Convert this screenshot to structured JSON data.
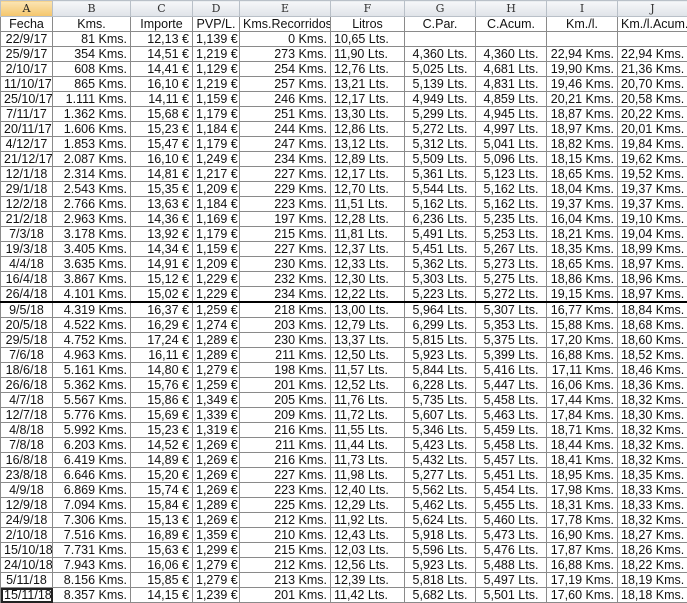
{
  "sheet": {
    "column_letters": [
      "A",
      "B",
      "C",
      "D",
      "E",
      "F",
      "G",
      "H",
      "I",
      "J"
    ],
    "active_column": "A",
    "headers": [
      "Fecha",
      "Kms.",
      "Importe",
      "PVP/L.",
      "Kms.Recorridos",
      "Litros",
      "C.Par.",
      "C.Acum.",
      "Km./l.",
      "Km./l.Acum."
    ],
    "rows": [
      [
        "22/9/17",
        "81 Kms.",
        "12,13 €",
        "1,139 €",
        "0 Kms.",
        "10,65 Lts.",
        "",
        "",
        "",
        ""
      ],
      [
        "25/9/17",
        "354 Kms.",
        "14,51 €",
        "1,219 €",
        "273 Kms.",
        "11,90 Lts.",
        "4,360 Lts.",
        "4,360 Lts.",
        "22,94 Kms.",
        "22,94 Kms."
      ],
      [
        "2/10/17",
        "608 Kms.",
        "14,41 €",
        "1,129 €",
        "254 Kms.",
        "12,76 Lts.",
        "5,025 Lts.",
        "4,681 Lts.",
        "19,90 Kms.",
        "21,36 Kms."
      ],
      [
        "11/10/17",
        "865 Kms.",
        "16,10 €",
        "1,219 €",
        "257 Kms.",
        "13,21 Lts.",
        "5,139 Lts.",
        "4,831 Lts.",
        "19,46 Kms.",
        "20,70 Kms."
      ],
      [
        "25/10/17",
        "1.111 Kms.",
        "14,11 €",
        "1,159 €",
        "246 Kms.",
        "12,17 Lts.",
        "4,949 Lts.",
        "4,859 Lts.",
        "20,21 Kms.",
        "20,58 Kms."
      ],
      [
        "7/11/17",
        "1.362 Kms.",
        "15,68 €",
        "1,179 €",
        "251 Kms.",
        "13,30 Lts.",
        "5,299 Lts.",
        "4,945 Lts.",
        "18,87 Kms.",
        "20,22 Kms."
      ],
      [
        "20/11/17",
        "1.606 Kms.",
        "15,23 €",
        "1,184 €",
        "244 Kms.",
        "12,86 Lts.",
        "5,272 Lts.",
        "4,997 Lts.",
        "18,97 Kms.",
        "20,01 Kms."
      ],
      [
        "4/12/17",
        "1.853 Kms.",
        "15,47 €",
        "1,179 €",
        "247 Kms.",
        "13,12 Lts.",
        "5,312 Lts.",
        "5,041 Lts.",
        "18,82 Kms.",
        "19,84 Kms."
      ],
      [
        "21/12/17",
        "2.087 Kms.",
        "16,10 €",
        "1,249 €",
        "234 Kms.",
        "12,89 Lts.",
        "5,509 Lts.",
        "5,096 Lts.",
        "18,15 Kms.",
        "19,62 Kms."
      ],
      [
        "12/1/18",
        "2.314 Kms.",
        "14,81 €",
        "1,217 €",
        "227 Kms.",
        "12,17 Lts.",
        "5,361 Lts.",
        "5,123 Lts.",
        "18,65 Kms.",
        "19,52 Kms."
      ],
      [
        "29/1/18",
        "2.543 Kms.",
        "15,35 €",
        "1,209 €",
        "229 Kms.",
        "12,70 Lts.",
        "5,544 Lts.",
        "5,162 Lts.",
        "18,04 Kms.",
        "19,37 Kms."
      ],
      [
        "12/2/18",
        "2.766 Kms.",
        "13,63 €",
        "1,184 €",
        "223 Kms.",
        "11,51 Lts.",
        "5,162 Lts.",
        "5,162 Lts.",
        "19,37 Kms.",
        "19,37 Kms."
      ],
      [
        "21/2/18",
        "2.963 Kms.",
        "14,36 €",
        "1,169 €",
        "197 Kms.",
        "12,28 Lts.",
        "6,236 Lts.",
        "5,235 Lts.",
        "16,04 Kms.",
        "19,10 Kms."
      ],
      [
        "7/3/18",
        "3.178 Kms.",
        "13,92 €",
        "1,179 €",
        "215 Kms.",
        "11,81 Lts.",
        "5,491 Lts.",
        "5,253 Lts.",
        "18,21 Kms.",
        "19,04 Kms."
      ],
      [
        "19/3/18",
        "3.405 Kms.",
        "14,34 €",
        "1,159 €",
        "227 Kms.",
        "12,37 Lts.",
        "5,451 Lts.",
        "5,267 Lts.",
        "18,35 Kms.",
        "18,99 Kms."
      ],
      [
        "4/4/18",
        "3.635 Kms.",
        "14,91 €",
        "1,209 €",
        "230 Kms.",
        "12,33 Lts.",
        "5,362 Lts.",
        "5,273 Lts.",
        "18,65 Kms.",
        "18,97 Kms."
      ],
      [
        "16/4/18",
        "3.867 Kms.",
        "15,12 €",
        "1,229 €",
        "232 Kms.",
        "12,30 Lts.",
        "5,303 Lts.",
        "5,275 Lts.",
        "18,86 Kms.",
        "18,96 Kms."
      ],
      [
        "26/4/18",
        "4.101 Kms.",
        "15,02 €",
        "1,229 €",
        "234 Kms.",
        "12,22 Lts.",
        "5,223 Lts.",
        "5,272 Lts.",
        "19,15 Kms.",
        "18,97 Kms."
      ],
      [
        "9/5/18",
        "4.319 Kms.",
        "16,37 €",
        "1,259 €",
        "218 Kms.",
        "13,00 Lts.",
        "5,964 Lts.",
        "5,307 Lts.",
        "16,77 Kms.",
        "18,84 Kms."
      ],
      [
        "20/5/18",
        "4.522 Kms.",
        "16,29 €",
        "1,274 €",
        "203 Kms.",
        "12,79 Lts.",
        "6,299 Lts.",
        "5,353 Lts.",
        "15,88 Kms.",
        "18,68 Kms."
      ],
      [
        "29/5/18",
        "4.752 Kms.",
        "17,24 €",
        "1,289 €",
        "230 Kms.",
        "13,37 Lts.",
        "5,815 Lts.",
        "5,375 Lts.",
        "17,20 Kms.",
        "18,60 Kms."
      ],
      [
        "7/6/18",
        "4.963 Kms.",
        "16,11 €",
        "1,289 €",
        "211 Kms.",
        "12,50 Lts.",
        "5,923 Lts.",
        "5,399 Lts.",
        "16,88 Kms.",
        "18,52 Kms."
      ],
      [
        "18/6/18",
        "5.161 Kms.",
        "14,80 €",
        "1,279 €",
        "198 Kms.",
        "11,57 Lts.",
        "5,844 Lts.",
        "5,416 Lts.",
        "17,11 Kms.",
        "18,46 Kms."
      ],
      [
        "26/6/18",
        "5.362 Kms.",
        "15,76 €",
        "1,259 €",
        "201 Kms.",
        "12,52 Lts.",
        "6,228 Lts.",
        "5,447 Lts.",
        "16,06 Kms.",
        "18,36 Kms."
      ],
      [
        "4/7/18",
        "5.567 Kms.",
        "15,86 €",
        "1,349 €",
        "205 Kms.",
        "11,76 Lts.",
        "5,735 Lts.",
        "5,458 Lts.",
        "17,44 Kms.",
        "18,32 Kms."
      ],
      [
        "12/7/18",
        "5.776 Kms.",
        "15,69 €",
        "1,339 €",
        "209 Kms.",
        "11,72 Lts.",
        "5,607 Lts.",
        "5,463 Lts.",
        "17,84 Kms.",
        "18,30 Kms."
      ],
      [
        "4/8/18",
        "5.992 Kms.",
        "15,23 €",
        "1,319 €",
        "216 Kms.",
        "11,55 Lts.",
        "5,346 Lts.",
        "5,459 Lts.",
        "18,71 Kms.",
        "18,32 Kms."
      ],
      [
        "7/8/18",
        "6.203 Kms.",
        "14,52 €",
        "1,269 €",
        "211 Kms.",
        "11,44 Lts.",
        "5,423 Lts.",
        "5,458 Lts.",
        "18,44 Kms.",
        "18,32 Kms."
      ],
      [
        "16/8/18",
        "6.419 Kms.",
        "14,89 €",
        "1,269 €",
        "216 Kms.",
        "11,73 Lts.",
        "5,432 Lts.",
        "5,457 Lts.",
        "18,41 Kms.",
        "18,32 Kms."
      ],
      [
        "23/8/18",
        "6.646 Kms.",
        "15,20 €",
        "1,269 €",
        "227 Kms.",
        "11,98 Lts.",
        "5,277 Lts.",
        "5,451 Lts.",
        "18,95 Kms.",
        "18,35 Kms."
      ],
      [
        "4/9/18",
        "6.869 Kms.",
        "15,74 €",
        "1,269 €",
        "223 Kms.",
        "12,40 Lts.",
        "5,562 Lts.",
        "5,454 Lts.",
        "17,98 Kms.",
        "18,33 Kms."
      ],
      [
        "12/9/18",
        "7.094 Kms.",
        "15,84 €",
        "1,289 €",
        "225 Kms.",
        "12,29 Lts.",
        "5,462 Lts.",
        "5,455 Lts.",
        "18,31 Kms.",
        "18,33 Kms."
      ],
      [
        "24/9/18",
        "7.306 Kms.",
        "15,13 €",
        "1,269 €",
        "212 Kms.",
        "11,92 Lts.",
        "5,624 Lts.",
        "5,460 Lts.",
        "17,78 Kms.",
        "18,32 Kms."
      ],
      [
        "2/10/18",
        "7.516 Kms.",
        "16,89 €",
        "1,359 €",
        "210 Kms.",
        "12,43 Lts.",
        "5,918 Lts.",
        "5,473 Lts.",
        "16,90 Kms.",
        "18,27 Kms."
      ],
      [
        "15/10/18",
        "7.731 Kms.",
        "15,63 €",
        "1,299 €",
        "215 Kms.",
        "12,03 Lts.",
        "5,596 Lts.",
        "5,476 Lts.",
        "17,87 Kms.",
        "18,26 Kms."
      ],
      [
        "24/10/18",
        "7.943 Kms.",
        "16,06 €",
        "1,279 €",
        "212 Kms.",
        "12,56 Lts.",
        "5,923 Lts.",
        "5,488 Lts.",
        "16,88 Kms.",
        "18,22 Kms."
      ],
      [
        "5/11/18",
        "8.156 Kms.",
        "15,85 €",
        "1,279 €",
        "213 Kms.",
        "12,39 Lts.",
        "5,818 Lts.",
        "5,497 Lts.",
        "17,19 Kms.",
        "18,19 Kms."
      ],
      [
        "15/11/18",
        "8.357 Kms.",
        "14,15 €",
        "1,239 €",
        "201 Kms.",
        "11,42 Lts.",
        "5,682 Lts.",
        "5,501 Lts.",
        "17,60 Kms.",
        "18,18 Kms."
      ]
    ]
  }
}
